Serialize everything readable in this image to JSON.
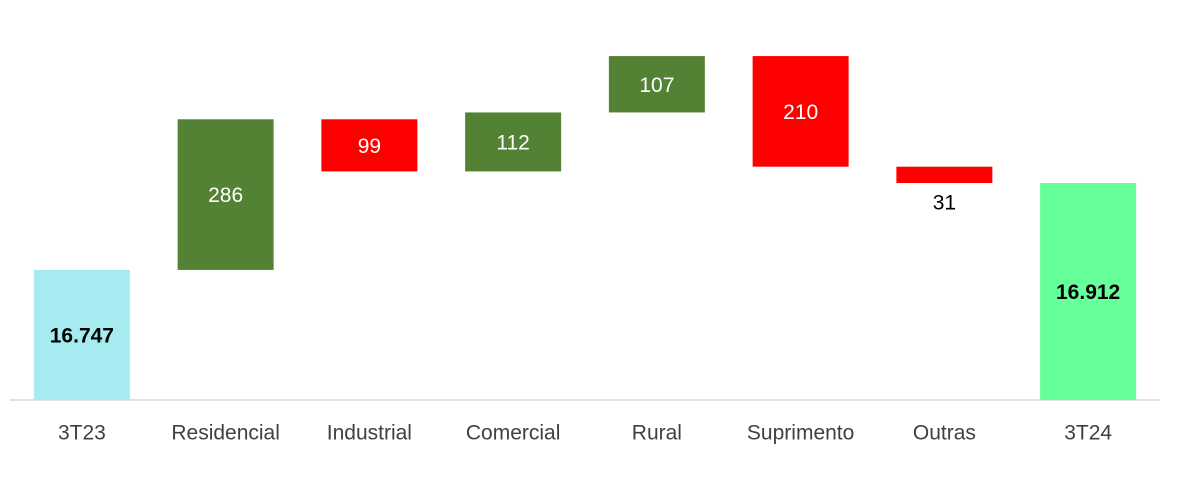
{
  "chart_data": {
    "type": "waterfall",
    "categories": [
      "3T23",
      "Residencial",
      "Industrial",
      "Comercial",
      "Rural",
      "Suprimento",
      "Outras",
      "3T24"
    ],
    "values": [
      16747,
      286,
      -99,
      112,
      107,
      -210,
      -31,
      16912
    ],
    "value_labels": [
      "16.747",
      "286",
      "99",
      "112",
      "107",
      "210",
      "31",
      "16.912"
    ],
    "measure": [
      "total",
      "relative",
      "relative",
      "relative",
      "relative",
      "relative",
      "relative",
      "total"
    ],
    "colors": {
      "start": "#a6ebf0",
      "end": "#66ff99",
      "increase": "#548235",
      "decrease": "#ff0000"
    },
    "ylim": [
      16500,
      17250
    ]
  }
}
